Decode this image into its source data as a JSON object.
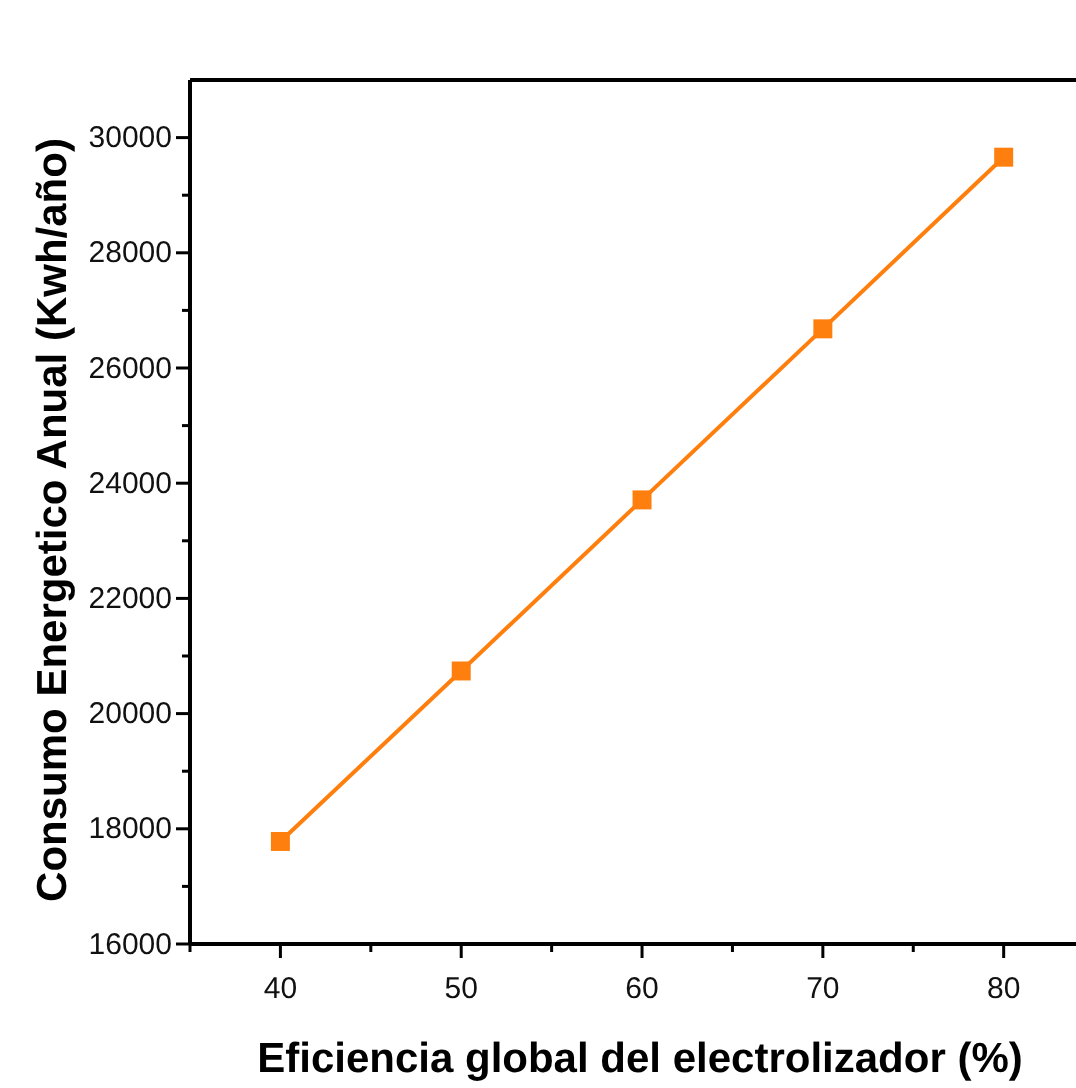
{
  "chart_data": {
    "type": "line",
    "xlabel": "Eficiencia global del electrolizador (%)",
    "ylabel": "Consumo Energetico Anual (Kwh/año)",
    "x": [
      40,
      50,
      60,
      70,
      80
    ],
    "series": [
      {
        "color": "#ff7f0e",
        "values": [
          17780,
          20740,
          23710,
          26680,
          29660
        ]
      }
    ],
    "xlim": [
      35,
      84
    ],
    "xticks": [
      {
        "value": 35,
        "label": null
      },
      40,
      {
        "value": 45,
        "label": null
      },
      50,
      {
        "value": 55,
        "label": null
      },
      60,
      {
        "value": 65,
        "label": null
      },
      70,
      {
        "value": 75,
        "label": null
      },
      80
    ],
    "ylim": [
      16000,
      31000
    ],
    "yticks": [
      16000,
      {
        "value": 17000,
        "label": null
      },
      18000,
      {
        "value": 19000,
        "label": null
      },
      20000,
      {
        "value": 21000,
        "label": null
      },
      22000,
      {
        "value": 23000,
        "label": null
      },
      24000,
      {
        "value": 25000,
        "label": null
      },
      26000,
      {
        "value": 27000,
        "label": null
      },
      28000,
      {
        "value": 29000,
        "label": null
      },
      30000
    ],
    "marker": "square",
    "line_style": "solid"
  }
}
